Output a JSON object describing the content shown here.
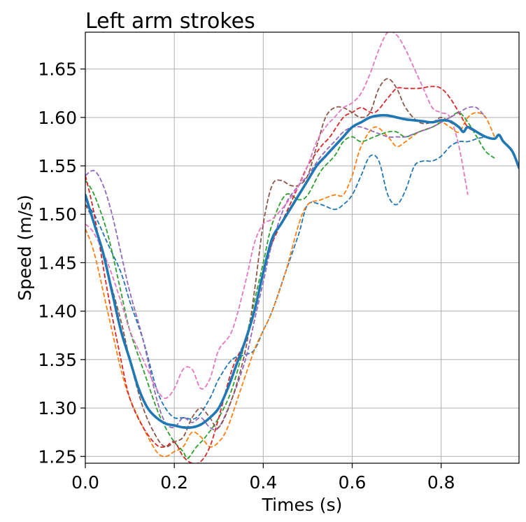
{
  "chart_data": {
    "type": "line",
    "title": "Left arm strokes",
    "xlabel": "Times (s)",
    "ylabel": "Speed (m/s)",
    "xlim": [
      0.0,
      0.975
    ],
    "ylim": [
      1.243,
      1.688
    ],
    "xticks": [
      0.0,
      0.2,
      0.4,
      0.6,
      0.8
    ],
    "xtick_labels": [
      "0.0",
      "0.2",
      "0.4",
      "0.6",
      "0.8"
    ],
    "yticks": [
      1.25,
      1.3,
      1.35,
      1.4,
      1.45,
      1.5,
      1.55,
      1.6,
      1.65
    ],
    "ytick_labels": [
      "1.25",
      "1.30",
      "1.35",
      "1.40",
      "1.45",
      "1.50",
      "1.55",
      "1.60",
      "1.65"
    ],
    "grid": true,
    "legend": "none",
    "series": [
      {
        "color": "#1f77b4",
        "style": "dashed",
        "x": [
          0.0,
          0.02,
          0.05,
          0.08,
          0.1,
          0.13,
          0.16,
          0.18,
          0.2,
          0.22,
          0.25,
          0.28,
          0.3,
          0.33,
          0.36,
          0.38,
          0.4,
          0.42,
          0.45,
          0.48,
          0.5,
          0.53,
          0.56,
          0.58,
          0.6,
          0.62,
          0.64,
          0.66,
          0.68,
          0.7,
          0.72,
          0.74,
          0.76,
          0.78,
          0.8,
          0.82,
          0.84,
          0.86,
          0.88,
          0.9
        ],
        "y": [
          1.51,
          1.5,
          1.47,
          1.44,
          1.41,
          1.37,
          1.32,
          1.3,
          1.29,
          1.29,
          1.29,
          1.31,
          1.33,
          1.35,
          1.355,
          1.36,
          1.38,
          1.4,
          1.44,
          1.48,
          1.51,
          1.51,
          1.505,
          1.51,
          1.52,
          1.54,
          1.56,
          1.555,
          1.52,
          1.51,
          1.525,
          1.55,
          1.555,
          1.555,
          1.56,
          1.57,
          1.575,
          1.575,
          1.578,
          1.58
        ]
      },
      {
        "color": "#ff7f0e",
        "style": "dashed",
        "x": [
          0.0,
          0.02,
          0.05,
          0.08,
          0.1,
          0.13,
          0.16,
          0.18,
          0.2,
          0.22,
          0.24,
          0.26,
          0.28,
          0.3,
          0.32,
          0.35,
          0.38,
          0.4,
          0.42,
          0.45,
          0.48,
          0.5,
          0.53,
          0.56,
          0.58,
          0.6,
          0.62,
          0.65,
          0.68,
          0.7,
          0.72,
          0.75,
          0.78,
          0.8,
          0.82,
          0.84,
          0.86,
          0.88,
          0.9,
          0.92
        ],
        "y": [
          1.485,
          1.46,
          1.4,
          1.34,
          1.31,
          1.28,
          1.255,
          1.25,
          1.255,
          1.26,
          1.275,
          1.27,
          1.26,
          1.265,
          1.28,
          1.32,
          1.36,
          1.38,
          1.4,
          1.44,
          1.49,
          1.51,
          1.515,
          1.52,
          1.52,
          1.54,
          1.57,
          1.59,
          1.58,
          1.57,
          1.575,
          1.585,
          1.59,
          1.595,
          1.59,
          1.585,
          1.6,
          1.605,
          1.6,
          1.58
        ]
      },
      {
        "color": "#2ca02c",
        "style": "dashed",
        "x": [
          0.0,
          0.02,
          0.05,
          0.08,
          0.1,
          0.13,
          0.16,
          0.18,
          0.2,
          0.22,
          0.23,
          0.25,
          0.27,
          0.3,
          0.33,
          0.36,
          0.38,
          0.4,
          0.42,
          0.45,
          0.48,
          0.5,
          0.53,
          0.56,
          0.58,
          0.6,
          0.62,
          0.65,
          0.68,
          0.7,
          0.72,
          0.75,
          0.78,
          0.8,
          0.82,
          0.84,
          0.86,
          0.88,
          0.9,
          0.92
        ],
        "y": [
          1.535,
          1.52,
          1.48,
          1.42,
          1.38,
          1.34,
          1.3,
          1.28,
          1.265,
          1.255,
          1.248,
          1.26,
          1.27,
          1.29,
          1.32,
          1.37,
          1.41,
          1.45,
          1.49,
          1.52,
          1.515,
          1.52,
          1.545,
          1.56,
          1.575,
          1.58,
          1.575,
          1.58,
          1.585,
          1.585,
          1.58,
          1.585,
          1.59,
          1.595,
          1.6,
          1.605,
          1.595,
          1.58,
          1.565,
          1.558
        ]
      },
      {
        "color": "#d62728",
        "style": "dashed",
        "x": [
          0.0,
          0.02,
          0.05,
          0.08,
          0.1,
          0.13,
          0.16,
          0.18,
          0.2,
          0.22,
          0.24,
          0.26,
          0.28,
          0.3,
          0.33,
          0.36,
          0.38,
          0.4,
          0.42,
          0.45,
          0.48,
          0.5,
          0.53,
          0.55,
          0.58,
          0.6,
          0.62,
          0.65,
          0.68,
          0.7,
          0.72,
          0.75,
          0.78,
          0.8,
          0.82,
          0.84,
          0.86,
          0.88,
          0.9
        ],
        "y": [
          1.54,
          1.5,
          1.42,
          1.35,
          1.31,
          1.28,
          1.262,
          1.26,
          1.265,
          1.25,
          1.243,
          1.245,
          1.26,
          1.29,
          1.34,
          1.37,
          1.4,
          1.44,
          1.47,
          1.5,
          1.53,
          1.55,
          1.57,
          1.58,
          1.6,
          1.605,
          1.61,
          1.605,
          1.62,
          1.63,
          1.63,
          1.63,
          1.632,
          1.63,
          1.62,
          1.605,
          1.59,
          1.585,
          1.58
        ]
      },
      {
        "color": "#9467bd",
        "style": "dashed",
        "x": [
          0.0,
          0.02,
          0.04,
          0.06,
          0.08,
          0.1,
          0.13,
          0.16,
          0.18,
          0.2,
          0.22,
          0.24,
          0.26,
          0.28,
          0.3,
          0.33,
          0.36,
          0.38,
          0.4,
          0.42,
          0.45,
          0.48,
          0.5,
          0.53,
          0.56,
          0.58,
          0.6,
          0.62,
          0.65,
          0.68,
          0.7,
          0.72,
          0.75,
          0.78,
          0.8,
          0.82,
          0.84,
          0.86,
          0.88,
          0.9
        ],
        "y": [
          1.54,
          1.545,
          1.53,
          1.5,
          1.46,
          1.42,
          1.37,
          1.31,
          1.285,
          1.28,
          1.29,
          1.285,
          1.29,
          1.28,
          1.28,
          1.31,
          1.35,
          1.39,
          1.43,
          1.47,
          1.51,
          1.53,
          1.54,
          1.56,
          1.575,
          1.585,
          1.59,
          1.59,
          1.585,
          1.58,
          1.58,
          1.58,
          1.585,
          1.59,
          1.595,
          1.6,
          1.605,
          1.61,
          1.61,
          1.6
        ]
      },
      {
        "color": "#8c564b",
        "style": "dashed",
        "x": [
          0.0,
          0.02,
          0.05,
          0.08,
          0.1,
          0.13,
          0.16,
          0.18,
          0.2,
          0.22,
          0.24,
          0.26,
          0.28,
          0.3,
          0.33,
          0.36,
          0.38,
          0.4,
          0.42,
          0.44,
          0.46,
          0.48,
          0.5,
          0.52,
          0.54,
          0.56,
          0.58,
          0.6,
          0.62,
          0.64,
          0.66,
          0.68,
          0.7,
          0.72,
          0.75,
          0.78,
          0.8,
          0.82,
          0.84
        ],
        "y": [
          1.51,
          1.49,
          1.44,
          1.39,
          1.35,
          1.3,
          1.27,
          1.26,
          1.265,
          1.27,
          1.29,
          1.3,
          1.29,
          1.28,
          1.31,
          1.36,
          1.42,
          1.49,
          1.53,
          1.535,
          1.53,
          1.53,
          1.54,
          1.57,
          1.6,
          1.61,
          1.61,
          1.605,
          1.6,
          1.605,
          1.63,
          1.64,
          1.63,
          1.61,
          1.595,
          1.595,
          1.6,
          1.595,
          1.59
        ]
      },
      {
        "color": "#e377c2",
        "style": "dashed",
        "x": [
          0.0,
          0.02,
          0.05,
          0.08,
          0.1,
          0.13,
          0.16,
          0.18,
          0.2,
          0.22,
          0.24,
          0.26,
          0.28,
          0.3,
          0.33,
          0.36,
          0.38,
          0.4,
          0.42,
          0.45,
          0.48,
          0.5,
          0.52,
          0.54,
          0.56,
          0.58,
          0.6,
          0.62,
          0.64,
          0.66,
          0.68,
          0.7,
          0.72,
          0.74,
          0.76,
          0.78,
          0.8,
          0.82,
          0.84,
          0.86
        ],
        "y": [
          1.49,
          1.48,
          1.45,
          1.41,
          1.38,
          1.35,
          1.32,
          1.31,
          1.32,
          1.34,
          1.34,
          1.32,
          1.33,
          1.36,
          1.38,
          1.43,
          1.47,
          1.49,
          1.495,
          1.51,
          1.53,
          1.55,
          1.575,
          1.59,
          1.6,
          1.61,
          1.615,
          1.625,
          1.645,
          1.67,
          1.688,
          1.685,
          1.67,
          1.65,
          1.63,
          1.61,
          1.605,
          1.6,
          1.57,
          1.52
        ]
      },
      {
        "color": "#1f77b4",
        "style": "solid-mean",
        "x": [
          0.0,
          0.02,
          0.04,
          0.06,
          0.08,
          0.1,
          0.12,
          0.14,
          0.16,
          0.18,
          0.2,
          0.22,
          0.24,
          0.26,
          0.28,
          0.3,
          0.32,
          0.34,
          0.36,
          0.38,
          0.4,
          0.42,
          0.44,
          0.46,
          0.48,
          0.5,
          0.52,
          0.54,
          0.56,
          0.58,
          0.6,
          0.62,
          0.64,
          0.66,
          0.68,
          0.7,
          0.72,
          0.74,
          0.76,
          0.78,
          0.8,
          0.82,
          0.84,
          0.85,
          0.86,
          0.88,
          0.9,
          0.92,
          0.93,
          0.94,
          0.96,
          0.975
        ],
        "y": [
          1.52,
          1.49,
          1.46,
          1.42,
          1.38,
          1.35,
          1.32,
          1.3,
          1.29,
          1.284,
          1.282,
          1.28,
          1.28,
          1.283,
          1.29,
          1.3,
          1.32,
          1.345,
          1.37,
          1.4,
          1.44,
          1.475,
          1.49,
          1.505,
          1.52,
          1.535,
          1.55,
          1.56,
          1.57,
          1.58,
          1.59,
          1.595,
          1.6,
          1.602,
          1.602,
          1.6,
          1.598,
          1.597,
          1.596,
          1.595,
          1.597,
          1.596,
          1.59,
          1.585,
          1.59,
          1.585,
          1.58,
          1.578,
          1.582,
          1.575,
          1.565,
          1.548
        ]
      }
    ]
  }
}
